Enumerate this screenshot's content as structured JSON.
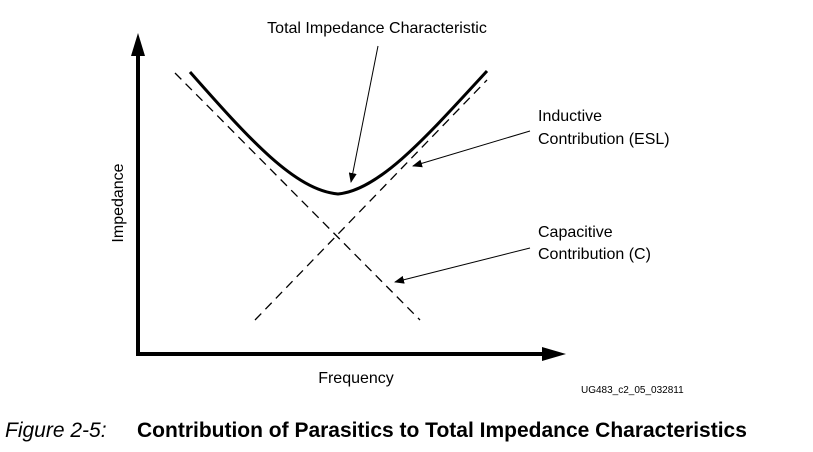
{
  "diagram": {
    "y_axis_label": "Impedance",
    "x_axis_label": "Frequency",
    "annotations": {
      "total": "Total Impedance Characteristic",
      "inductive_line1": "Inductive",
      "inductive_line2": "Contribution (ESL)",
      "capacitive_line1": "Capacitive",
      "capacitive_line2": "Contribution (C)"
    },
    "figure_code": "UG483_c2_05_032811",
    "curves": [
      {
        "name": "total",
        "style": "solid"
      },
      {
        "name": "inductive",
        "style": "dashed"
      },
      {
        "name": "capacitive",
        "style": "dashed"
      }
    ]
  },
  "caption": {
    "number": "Figure 2-5:",
    "title": "Contribution of Parasitics to Total Impedance Characteristics"
  }
}
